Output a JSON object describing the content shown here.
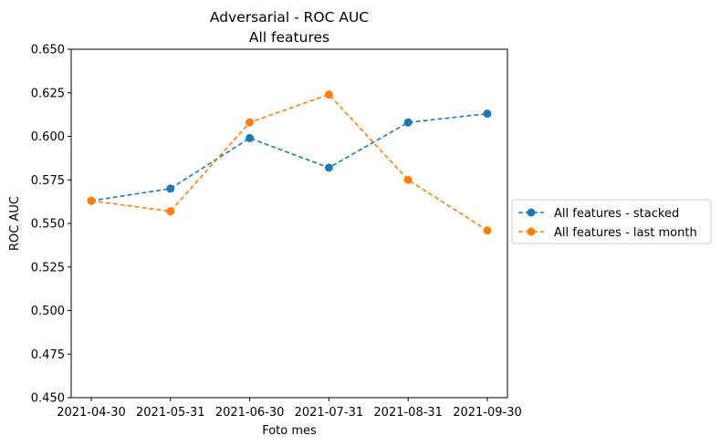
{
  "chart_data": {
    "type": "line",
    "title": "Adversarial - ROC AUC",
    "subtitle": "All features",
    "xlabel": "Foto mes",
    "ylabel": "ROC AUC",
    "x": [
      "2021-04-30",
      "2021-05-31",
      "2021-06-30",
      "2021-07-31",
      "2021-08-31",
      "2021-09-30"
    ],
    "ylim": [
      0.45,
      0.65
    ],
    "yticks": [
      "0.450",
      "0.475",
      "0.500",
      "0.525",
      "0.550",
      "0.575",
      "0.600",
      "0.625",
      "0.650"
    ],
    "grid": false,
    "legend_placement": "center-right-outside",
    "series": [
      {
        "name": "All features - stacked",
        "color": "#1f77b4",
        "line_style": "dashed",
        "marker": "circle",
        "values": [
          0.563,
          0.57,
          0.599,
          0.582,
          0.608,
          0.613
        ]
      },
      {
        "name": "All features - last month",
        "color": "#ff7f0e",
        "line_style": "dashed",
        "marker": "circle",
        "values": [
          0.563,
          0.557,
          0.608,
          0.624,
          0.575,
          0.546
        ]
      }
    ]
  }
}
